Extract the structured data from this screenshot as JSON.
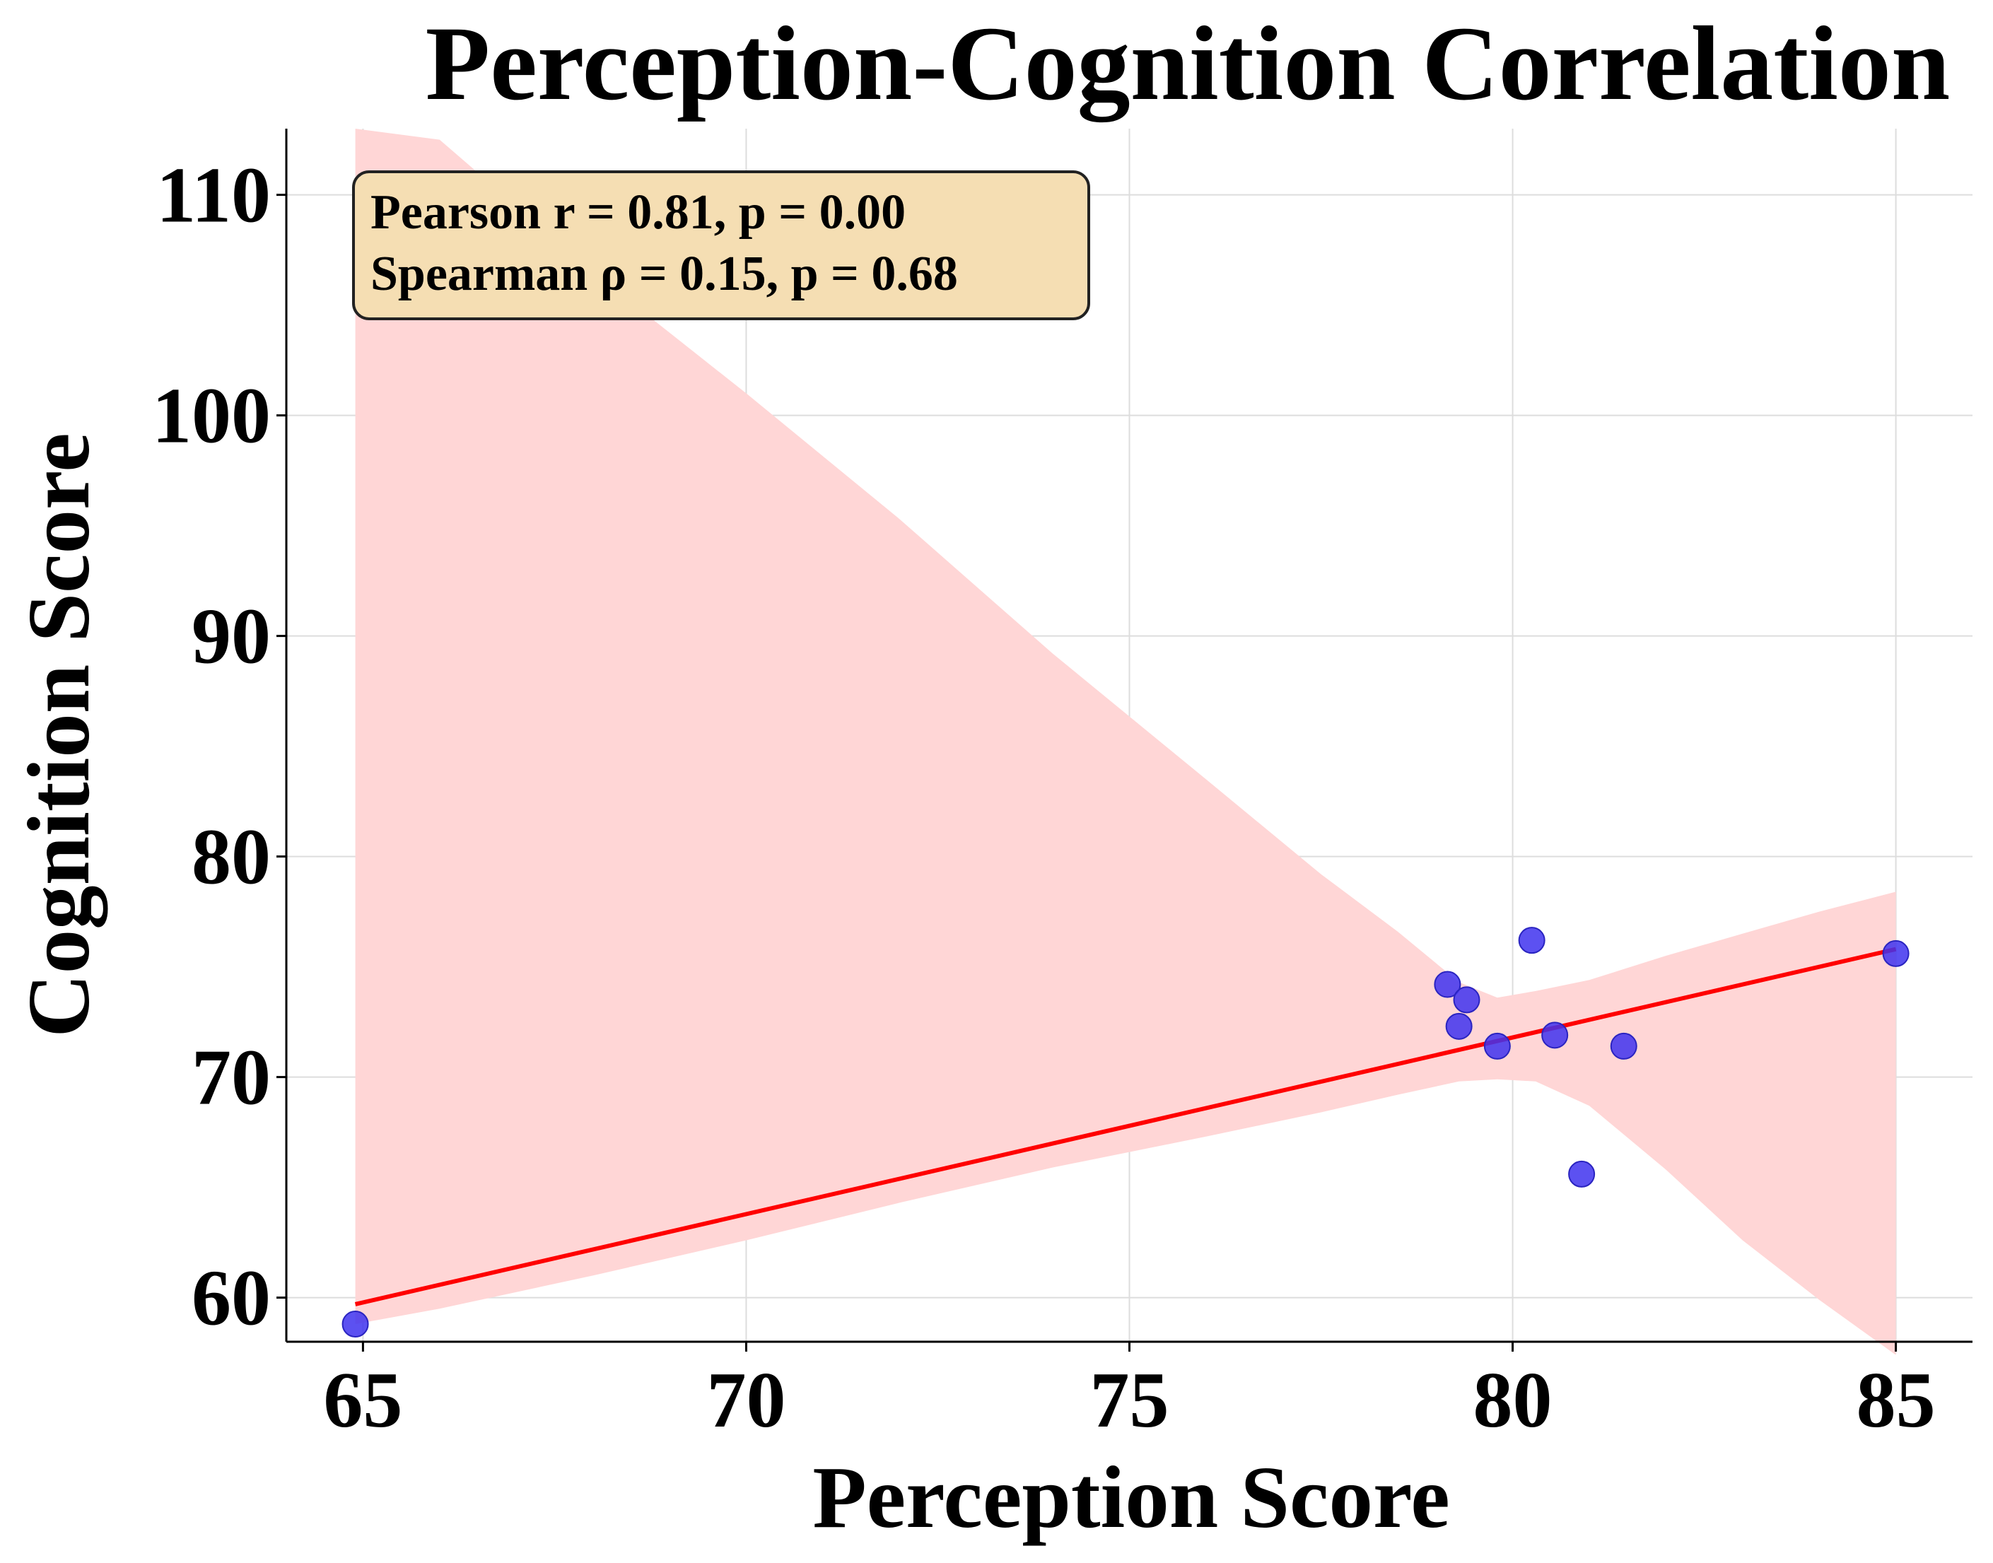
{
  "chart_data": {
    "type": "scatter",
    "title": "Perception-Cognition Correlation",
    "xlabel": "Perception Score",
    "ylabel": "Cognition Score",
    "xlim": [
      64.0,
      86.0
    ],
    "ylim": [
      58.0,
      113.0
    ],
    "xticks": [
      65,
      70,
      75,
      80,
      85
    ],
    "yticks": [
      60,
      70,
      80,
      90,
      100,
      110
    ],
    "grid": true,
    "points": [
      {
        "x": 64.9,
        "y": 58.8
      },
      {
        "x": 79.15,
        "y": 74.2
      },
      {
        "x": 79.3,
        "y": 72.3
      },
      {
        "x": 79.4,
        "y": 73.5
      },
      {
        "x": 79.8,
        "y": 71.4
      },
      {
        "x": 80.25,
        "y": 76.2
      },
      {
        "x": 80.55,
        "y": 71.9
      },
      {
        "x": 80.9,
        "y": 65.6
      },
      {
        "x": 81.45,
        "y": 71.4
      },
      {
        "x": 85.0,
        "y": 75.6
      }
    ],
    "regression_line": {
      "x": [
        64.9,
        85.0
      ],
      "y": [
        59.7,
        75.8
      ]
    },
    "confidence_band": {
      "x": [
        64.9,
        66.0,
        68.0,
        70.0,
        72.0,
        74.0,
        76.0,
        77.5,
        78.5,
        79.3,
        79.8,
        80.3,
        81.0,
        82.0,
        83.0,
        84.0,
        85.0
      ],
      "upper": [
        113.0,
        112.5,
        106.5,
        101.0,
        95.3,
        89.2,
        83.5,
        79.2,
        76.6,
        74.3,
        73.6,
        73.9,
        74.4,
        75.5,
        76.5,
        77.5,
        78.4
      ],
      "lower": [
        58.8,
        59.5,
        61.0,
        62.6,
        64.3,
        65.9,
        67.3,
        68.4,
        69.2,
        69.8,
        69.9,
        69.8,
        68.7,
        65.8,
        62.6,
        59.9,
        57.4
      ]
    },
    "stats_box": {
      "line1": "Pearson r = 0.81, p = 0.00",
      "line2": "Spearman ρ = 0.15, p = 0.68",
      "location": "top-left"
    },
    "colors": {
      "points": "#3f33ee",
      "points_edge": "#2a24c0",
      "line": "#ff0000",
      "band": "#ffd6d6",
      "box_fill": "#f5deb3",
      "box_edge": "#222222"
    }
  }
}
